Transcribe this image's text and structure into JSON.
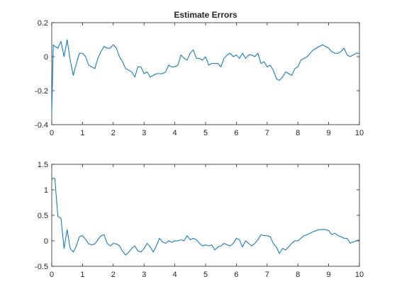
{
  "chart_data": [
    {
      "type": "line",
      "title": "Estimate Errors",
      "xlabel": "",
      "ylabel": "",
      "xlim": [
        0,
        10
      ],
      "ylim": [
        -0.4,
        0.2
      ],
      "xticks": [
        0,
        1,
        2,
        3,
        4,
        5,
        6,
        7,
        8,
        9,
        10
      ],
      "yticks": [
        -0.4,
        -0.2,
        0,
        0.2
      ],
      "ytick_labels": [
        "-0.4",
        "-0.2",
        "0",
        "0.2"
      ],
      "grid": false,
      "legend": "none",
      "line_color": "#0072BD",
      "series": [
        {
          "x": [
            0,
            0.05,
            0.1,
            0.2,
            0.3,
            0.4,
            0.5,
            0.6,
            0.7,
            0.8,
            0.9,
            1.0,
            1.1,
            1.2,
            1.3,
            1.4,
            1.5,
            1.6,
            1.7,
            1.8,
            1.9,
            2.0,
            2.1,
            2.2,
            2.3,
            2.4,
            2.5,
            2.6,
            2.7,
            2.8,
            2.9,
            3.0,
            3.1,
            3.2,
            3.3,
            3.4,
            3.5,
            3.6,
            3.7,
            3.8,
            3.9,
            4.0,
            4.1,
            4.2,
            4.3,
            4.4,
            4.5,
            4.6,
            4.7,
            4.8,
            4.9,
            5.0,
            5.1,
            5.2,
            5.3,
            5.4,
            5.5,
            5.6,
            5.7,
            5.8,
            5.9,
            6.0,
            6.1,
            6.2,
            6.3,
            6.4,
            6.5,
            6.6,
            6.7,
            6.8,
            6.9,
            7.0,
            7.1,
            7.2,
            7.3,
            7.4,
            7.5,
            7.6,
            7.7,
            7.8,
            7.9,
            8.0,
            8.1,
            8.2,
            8.3,
            8.4,
            8.5,
            8.6,
            8.7,
            8.8,
            8.9,
            9.0,
            9.1,
            9.2,
            9.3,
            9.4,
            9.5,
            9.6,
            9.7,
            9.8,
            9.9,
            10.0
          ],
          "values": [
            -0.33,
            0.07,
            0.06,
            0.05,
            0.09,
            0.0,
            0.1,
            -0.02,
            -0.11,
            -0.04,
            0.02,
            0.02,
            0.0,
            -0.05,
            -0.06,
            -0.07,
            -0.01,
            0.03,
            0.06,
            0.05,
            0.05,
            0.07,
            0.05,
            0.0,
            -0.03,
            -0.07,
            -0.08,
            -0.09,
            -0.12,
            -0.06,
            -0.06,
            -0.1,
            -0.09,
            -0.12,
            -0.11,
            -0.1,
            -0.1,
            -0.1,
            -0.09,
            -0.05,
            -0.06,
            -0.06,
            -0.05,
            0.01,
            -0.01,
            -0.02,
            0.02,
            0.04,
            -0.01,
            -0.01,
            -0.02,
            0.0,
            -0.05,
            -0.04,
            -0.04,
            -0.04,
            -0.06,
            -0.01,
            0.01,
            0.02,
            0.0,
            0.01,
            -0.01,
            0.02,
            -0.01,
            0.01,
            0.01,
            0.0,
            0.02,
            -0.04,
            -0.03,
            -0.06,
            -0.05,
            -0.08,
            -0.13,
            -0.14,
            -0.12,
            -0.09,
            -0.1,
            -0.11,
            -0.07,
            -0.06,
            -0.02,
            -0.01,
            0.0,
            0.02,
            0.04,
            0.05,
            0.06,
            0.07,
            0.06,
            0.05,
            0.03,
            0.02,
            0.02,
            0.03,
            0.05,
            0.01,
            0.0,
            0.01,
            0.02,
            0.02
          ]
        }
      ]
    },
    {
      "type": "line",
      "title": "",
      "xlabel": "",
      "ylabel": "",
      "xlim": [
        0,
        10
      ],
      "ylim": [
        -0.5,
        1.5
      ],
      "xticks": [
        0,
        1,
        2,
        3,
        4,
        5,
        6,
        7,
        8,
        9,
        10
      ],
      "yticks": [
        -0.5,
        0,
        0.5,
        1,
        1.5
      ],
      "ytick_labels": [
        "-0.5",
        "0",
        "0.5",
        "1",
        "1.5"
      ],
      "grid": false,
      "legend": "none",
      "line_color": "#0072BD",
      "series": [
        {
          "x": [
            0,
            0.05,
            0.1,
            0.2,
            0.3,
            0.4,
            0.5,
            0.6,
            0.7,
            0.8,
            0.9,
            1.0,
            1.1,
            1.2,
            1.3,
            1.4,
            1.5,
            1.6,
            1.7,
            1.8,
            1.9,
            2.0,
            2.1,
            2.2,
            2.3,
            2.4,
            2.5,
            2.6,
            2.7,
            2.8,
            2.9,
            3.0,
            3.1,
            3.2,
            3.3,
            3.4,
            3.5,
            3.6,
            3.7,
            3.8,
            3.9,
            4.0,
            4.1,
            4.2,
            4.3,
            4.4,
            4.5,
            4.6,
            4.7,
            4.8,
            4.9,
            5.0,
            5.1,
            5.2,
            5.3,
            5.4,
            5.5,
            5.6,
            5.7,
            5.8,
            5.9,
            6.0,
            6.1,
            6.2,
            6.3,
            6.4,
            6.5,
            6.6,
            6.7,
            6.8,
            6.9,
            7.0,
            7.1,
            7.2,
            7.3,
            7.4,
            7.5,
            7.6,
            7.7,
            7.8,
            7.9,
            8.0,
            8.1,
            8.2,
            8.3,
            8.4,
            8.5,
            8.6,
            8.7,
            8.8,
            8.9,
            9.0,
            9.1,
            9.2,
            9.3,
            9.4,
            9.5,
            9.6,
            9.7,
            9.8,
            9.9,
            10.0
          ],
          "values": [
            1.2,
            1.23,
            1.22,
            0.48,
            0.44,
            -0.15,
            0.22,
            -0.15,
            -0.22,
            -0.1,
            0.08,
            0.1,
            0.03,
            -0.06,
            -0.08,
            -0.06,
            0.02,
            0.1,
            0.12,
            -0.05,
            -0.1,
            -0.05,
            -0.06,
            -0.1,
            -0.2,
            -0.28,
            -0.22,
            -0.15,
            -0.1,
            -0.2,
            -0.22,
            -0.15,
            -0.05,
            -0.12,
            -0.22,
            -0.1,
            0.05,
            -0.02,
            -0.05,
            0.0,
            -0.03,
            0.0,
            0.0,
            0.02,
            0.0,
            0.1,
            0.02,
            0.05,
            0.02,
            -0.05,
            -0.1,
            -0.08,
            -0.1,
            -0.08,
            -0.18,
            -0.12,
            -0.1,
            -0.05,
            -0.08,
            -0.1,
            -0.05,
            0.05,
            0.02,
            -0.12,
            0.0,
            -0.05,
            -0.1,
            -0.05,
            0.02,
            0.12,
            0.1,
            0.1,
            0.08,
            -0.05,
            -0.12,
            -0.25,
            -0.15,
            -0.18,
            -0.12,
            -0.05,
            0.0,
            0.0,
            0.05,
            0.1,
            0.12,
            0.15,
            0.18,
            0.2,
            0.22,
            0.22,
            0.22,
            0.2,
            0.12,
            0.15,
            0.1,
            0.08,
            0.05,
            0.05,
            -0.05,
            -0.02,
            0.0,
            0.02
          ]
        }
      ]
    }
  ]
}
